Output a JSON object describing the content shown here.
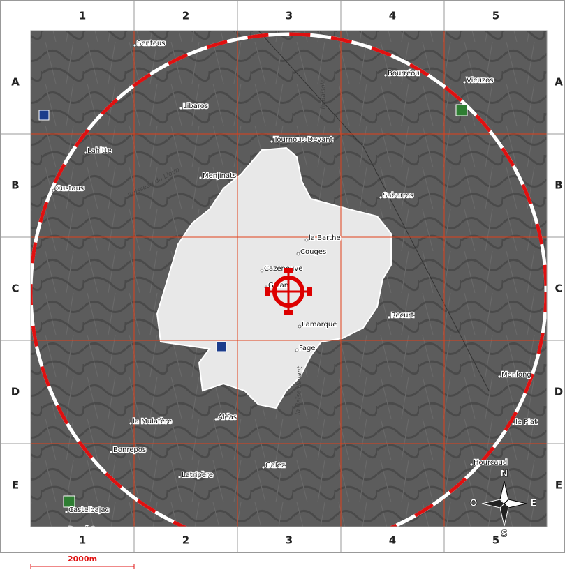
{
  "grid": {
    "columns": [
      "1",
      "2",
      "3",
      "4",
      "5"
    ],
    "rows": [
      "A",
      "B",
      "C",
      "D",
      "E"
    ]
  },
  "places": [
    "Sentous",
    "Libaros",
    "Tournous-Devant",
    "Bourréou",
    "Vieuzos",
    "Lahitte",
    "Custaus",
    "Menjinats",
    "Sabarros",
    "la Barthe",
    "Couges",
    "Cazeneuve",
    "Galan",
    "Lamarque",
    "Recurt",
    "Fage",
    "Monlong",
    "le Plat",
    "la Mulatère",
    "Aléas",
    "Bonrepos",
    "Latripère",
    "Galez",
    "Hourcaud",
    "Castelbajac",
    "Darré Gay"
  ],
  "streams": [
    "la Baisole",
    "Ruisseau du Lloup",
    "la Baïse devant"
  ],
  "scale": "2000m",
  "compass": {
    "north": "N",
    "south": "S",
    "east": "E",
    "west": "O"
  }
}
